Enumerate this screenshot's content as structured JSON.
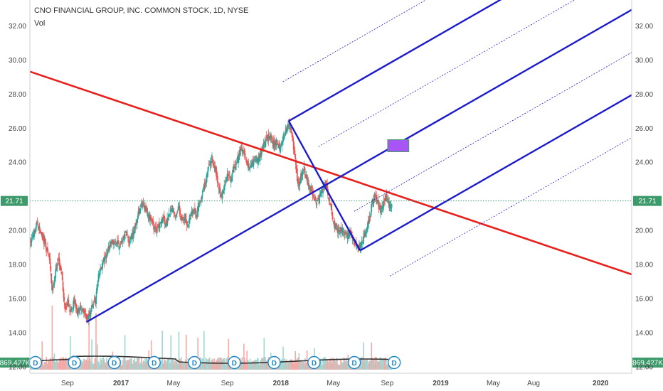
{
  "header": {
    "title": "CNO FINANCIAL GROUP, INC. COMMON STOCK, 1D, NYSE",
    "volume_label": "Vol"
  },
  "price_tag": "21.71",
  "volume_tag": "869.427K",
  "dividend_marker": "D",
  "colors": {
    "pitchfork": "#1c1ccc",
    "trendline": "#e8201c",
    "rectangle_fill": "#a855f7",
    "rectangle_stroke": "#4b9a6b",
    "up": "#26a69a",
    "down": "#ef5350",
    "price_tag_bg": "#3d9a6b",
    "volume_ma": "#333333"
  },
  "chart_data": {
    "type": "candlestick",
    "title": "CNO FINANCIAL GROUP, INC. COMMON STOCK, 1D, NYSE",
    "y_axis": {
      "ticks": [
        12,
        14,
        16,
        18,
        20,
        22,
        24,
        26,
        28,
        30,
        32
      ],
      "tick_labels": [
        "12.00",
        "14.00",
        "16.00",
        "18.00",
        "20.00",
        "",
        "24.00",
        "26.00",
        "28.00",
        "30.00",
        "32.00"
      ],
      "range": [
        11.6,
        33.5
      ],
      "position": "both"
    },
    "x_axis": {
      "tick_labels": [
        "Sep",
        "2017",
        "May",
        "Sep",
        "2018",
        "May",
        "Sep",
        "2019",
        "May",
        "Aug",
        "2020"
      ],
      "tick_dates": [
        "2016-09-01",
        "2017-01-01",
        "2017-05-01",
        "2017-09-01",
        "2018-01-01",
        "2018-05-01",
        "2018-09-01",
        "2019-01-01",
        "2019-05-01",
        "2019-08-01",
        "2020-01-01"
      ],
      "range": [
        "2016-06-07",
        "2020-03-12"
      ]
    },
    "last_price": 21.71,
    "price_path": [
      [
        "2016-06-07",
        19.1
      ],
      [
        "2016-06-15",
        19.8
      ],
      [
        "2016-06-24",
        20.4
      ],
      [
        "2016-07-05",
        19.6
      ],
      [
        "2016-07-15",
        18.9
      ],
      [
        "2016-07-22",
        18.3
      ],
      [
        "2016-07-28",
        16.4
      ],
      [
        "2016-08-05",
        17.6
      ],
      [
        "2016-08-12",
        18.2
      ],
      [
        "2016-08-19",
        17.3
      ],
      [
        "2016-08-26",
        15.3
      ],
      [
        "2016-09-02",
        15.6
      ],
      [
        "2016-09-09",
        15.2
      ],
      [
        "2016-09-16",
        15.9
      ],
      [
        "2016-09-23",
        15.1
      ],
      [
        "2016-09-30",
        15.5
      ],
      [
        "2016-10-07",
        15.3
      ],
      [
        "2016-10-14",
        14.8
      ],
      [
        "2016-10-21",
        15.0
      ],
      [
        "2016-10-28",
        15.6
      ],
      [
        "2016-11-04",
        15.9
      ],
      [
        "2016-11-11",
        17.3
      ],
      [
        "2016-11-18",
        17.9
      ],
      [
        "2016-11-25",
        18.3
      ],
      [
        "2016-12-02",
        18.8
      ],
      [
        "2016-12-09",
        19.4
      ],
      [
        "2016-12-16",
        19.2
      ],
      [
        "2016-12-23",
        19.3
      ],
      [
        "2016-12-30",
        19.1
      ],
      [
        "2017-01-06",
        19.5
      ],
      [
        "2017-01-13",
        19.9
      ],
      [
        "2017-01-20",
        19.3
      ],
      [
        "2017-01-27",
        19.7
      ],
      [
        "2017-02-03",
        20.2
      ],
      [
        "2017-02-10",
        21.0
      ],
      [
        "2017-02-17",
        21.5
      ],
      [
        "2017-02-24",
        21.3
      ],
      [
        "2017-03-03",
        21.0
      ],
      [
        "2017-03-10",
        20.6
      ],
      [
        "2017-03-17",
        20.2
      ],
      [
        "2017-03-24",
        20.0
      ],
      [
        "2017-03-31",
        20.4
      ],
      [
        "2017-04-07",
        20.8
      ],
      [
        "2017-04-14",
        20.3
      ],
      [
        "2017-04-21",
        20.9
      ],
      [
        "2017-04-28",
        21.2
      ],
      [
        "2017-05-05",
        20.8
      ],
      [
        "2017-05-12",
        21.3
      ],
      [
        "2017-05-19",
        20.6
      ],
      [
        "2017-05-26",
        20.8
      ],
      [
        "2017-06-02",
        20.3
      ],
      [
        "2017-06-09",
        20.9
      ],
      [
        "2017-06-16",
        21.1
      ],
      [
        "2017-06-23",
        20.9
      ],
      [
        "2017-06-30",
        21.6
      ],
      [
        "2017-07-07",
        22.3
      ],
      [
        "2017-07-14",
        23.0
      ],
      [
        "2017-07-21",
        23.8
      ],
      [
        "2017-07-28",
        24.1
      ],
      [
        "2017-08-04",
        23.6
      ],
      [
        "2017-08-11",
        22.5
      ],
      [
        "2017-08-18",
        22.0
      ],
      [
        "2017-08-25",
        22.5
      ],
      [
        "2017-09-01",
        23.3
      ],
      [
        "2017-09-08",
        23.0
      ],
      [
        "2017-09-15",
        23.6
      ],
      [
        "2017-09-22",
        24.0
      ],
      [
        "2017-09-29",
        24.6
      ],
      [
        "2017-10-06",
        24.8
      ],
      [
        "2017-10-13",
        24.0
      ],
      [
        "2017-10-20",
        23.7
      ],
      [
        "2017-10-27",
        23.9
      ],
      [
        "2017-11-03",
        24.3
      ],
      [
        "2017-11-10",
        24.1
      ],
      [
        "2017-11-17",
        24.6
      ],
      [
        "2017-11-24",
        25.1
      ],
      [
        "2017-12-01",
        25.3
      ],
      [
        "2017-12-08",
        25.5
      ],
      [
        "2017-12-15",
        24.9
      ],
      [
        "2017-12-22",
        25.2
      ],
      [
        "2017-12-29",
        24.8
      ],
      [
        "2018-01-05",
        25.3
      ],
      [
        "2018-01-12",
        25.8
      ],
      [
        "2018-01-19",
        26.2
      ],
      [
        "2018-01-26",
        25.6
      ],
      [
        "2018-02-02",
        24.3
      ],
      [
        "2018-02-09",
        22.6
      ],
      [
        "2018-02-16",
        23.2
      ],
      [
        "2018-02-23",
        23.6
      ],
      [
        "2018-03-02",
        22.9
      ],
      [
        "2018-03-09",
        22.4
      ],
      [
        "2018-03-16",
        22.1
      ],
      [
        "2018-03-23",
        21.6
      ],
      [
        "2018-03-30",
        21.9
      ],
      [
        "2018-04-06",
        22.4
      ],
      [
        "2018-04-13",
        22.7
      ],
      [
        "2018-04-20",
        22.0
      ],
      [
        "2018-04-27",
        21.0
      ],
      [
        "2018-05-04",
        20.3
      ],
      [
        "2018-05-11",
        19.9
      ],
      [
        "2018-05-18",
        20.1
      ],
      [
        "2018-05-25",
        19.8
      ],
      [
        "2018-06-01",
        19.6
      ],
      [
        "2018-06-08",
        19.9
      ],
      [
        "2018-06-15",
        19.4
      ],
      [
        "2018-06-22",
        19.2
      ],
      [
        "2018-06-29",
        19.0
      ],
      [
        "2018-07-06",
        19.3
      ],
      [
        "2018-07-13",
        19.9
      ],
      [
        "2018-07-20",
        20.4
      ],
      [
        "2018-07-27",
        21.4
      ],
      [
        "2018-08-03",
        22.1
      ],
      [
        "2018-08-10",
        21.5
      ],
      [
        "2018-08-17",
        21.2
      ],
      [
        "2018-08-24",
        21.8
      ],
      [
        "2018-08-31",
        21.9
      ],
      [
        "2018-09-07",
        21.3
      ],
      [
        "2018-09-12",
        21.71
      ]
    ],
    "dividend_dates": [
      "2016-06-10",
      "2016-09-07",
      "2016-12-07",
      "2017-03-08",
      "2017-06-08",
      "2017-09-07",
      "2017-12-07",
      "2018-03-08",
      "2018-06-08",
      "2018-09-07"
    ],
    "pitchfork": {
      "pivot": [
        "2016-10-14",
        14.6
      ],
      "handle_top": [
        "2018-01-19",
        26.4
      ],
      "handle_bottom": [
        "2018-07-01",
        18.8
      ]
    },
    "trendline": {
      "from": [
        "2016-06-07",
        29.3
      ],
      "to": [
        "2020-03-12",
        17.4
      ]
    },
    "highlight_box": {
      "from": [
        "2018-09-02",
        25.3
      ],
      "to": [
        "2018-10-20",
        24.6
      ]
    }
  }
}
